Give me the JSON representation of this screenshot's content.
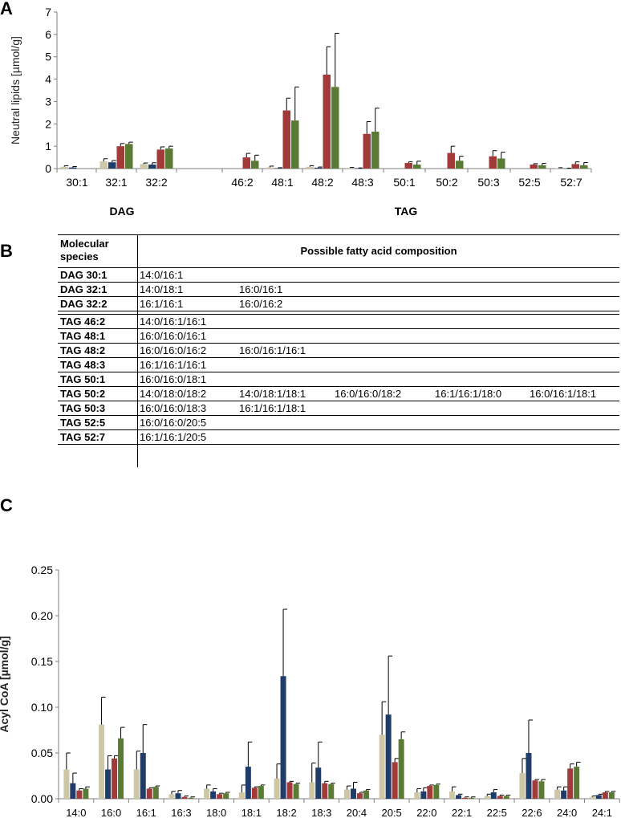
{
  "panels": {
    "a": "A",
    "b": "B",
    "c": "C"
  },
  "colors": {
    "series1": "#cdc7a6",
    "series2": "#1f3c6b",
    "series3": "#a33a3a",
    "series4": "#5b7a34"
  },
  "chart_data": [
    {
      "type": "bar",
      "ylabel": "Neutral lipids [µmol/g]",
      "ylim": [
        0,
        7
      ],
      "yticks": [
        0,
        1,
        2,
        3,
        4,
        5,
        6,
        7
      ],
      "categories": [
        "30:1",
        "32:1",
        "32:2",
        "46:2",
        "48:1",
        "48:2",
        "48:3",
        "50:1",
        "50:2",
        "50:3",
        "52:5",
        "52:7"
      ],
      "group_labels": [
        {
          "label": "DAG",
          "categories": [
            "30:1",
            "32:1",
            "32:2"
          ]
        },
        {
          "label": "TAG",
          "categories": [
            "46:2",
            "48:1",
            "48:2",
            "48:3",
            "50:1",
            "50:2",
            "50:3",
            "52:5",
            "52:7"
          ]
        }
      ],
      "series": [
        {
          "values": [
            0.08,
            0.32,
            0.2,
            0.0,
            0.05,
            0.08,
            0.03,
            0.0,
            0.0,
            0.0,
            0.0,
            0.02
          ],
          "errors": [
            0.05,
            0.12,
            0.05,
            0.0,
            0.06,
            0.05,
            0.02,
            0.0,
            0.0,
            0.0,
            0.0,
            0.02
          ]
        },
        {
          "values": [
            0.05,
            0.28,
            0.18,
            0.0,
            0.02,
            0.04,
            0.02,
            0.0,
            0.0,
            0.0,
            0.0,
            0.01
          ],
          "errors": [
            0.04,
            0.08,
            0.08,
            0.0,
            0.02,
            0.03,
            0.01,
            0.0,
            0.0,
            0.0,
            0.0,
            0.01
          ]
        },
        {
          "values": [
            0.0,
            1.0,
            0.85,
            0.5,
            2.6,
            4.2,
            1.55,
            0.25,
            0.7,
            0.55,
            0.18,
            0.2
          ],
          "errors": [
            0.0,
            0.12,
            0.12,
            0.18,
            0.55,
            1.25,
            0.55,
            0.05,
            0.3,
            0.25,
            0.04,
            0.1
          ]
        },
        {
          "values": [
            0.0,
            1.1,
            0.9,
            0.35,
            2.15,
            3.65,
            1.65,
            0.18,
            0.35,
            0.45,
            0.15,
            0.15
          ],
          "errors": [
            0.0,
            0.08,
            0.1,
            0.25,
            1.5,
            2.4,
            1.05,
            0.15,
            0.2,
            0.28,
            0.08,
            0.12
          ]
        }
      ]
    },
    {
      "type": "bar",
      "ylabel": "Acyl CoA [µmol/g]",
      "ylim": [
        0,
        0.25
      ],
      "yticks": [
        "0.00",
        "0.05",
        "0.10",
        "0.15",
        "0.20",
        "0.25"
      ],
      "categories": [
        "14:0",
        "16:0",
        "16:1",
        "16:3",
        "18:0",
        "18:1",
        "18:2",
        "18:3",
        "20:4",
        "20:5",
        "22:0",
        "22:1",
        "22:5",
        "22:6",
        "24:0",
        "24:1"
      ],
      "series": [
        {
          "values": [
            0.032,
            0.081,
            0.032,
            0.005,
            0.011,
            0.007,
            0.022,
            0.018,
            0.01,
            0.07,
            0.007,
            0.008,
            0.003,
            0.028,
            0.01,
            0.002
          ],
          "errors": [
            0.018,
            0.03,
            0.02,
            0.003,
            0.004,
            0.008,
            0.016,
            0.021,
            0.004,
            0.036,
            0.004,
            0.005,
            0.002,
            0.016,
            0.003,
            0.001
          ]
        },
        {
          "values": [
            0.017,
            0.032,
            0.05,
            0.006,
            0.008,
            0.035,
            0.134,
            0.034,
            0.011,
            0.092,
            0.008,
            0.004,
            0.007,
            0.05,
            0.009,
            0.004
          ],
          "errors": [
            0.011,
            0.015,
            0.031,
            0.003,
            0.003,
            0.027,
            0.073,
            0.028,
            0.007,
            0.064,
            0.004,
            0.001,
            0.003,
            0.036,
            0.004,
            0.001
          ]
        },
        {
          "values": [
            0.009,
            0.044,
            0.011,
            0.002,
            0.005,
            0.012,
            0.018,
            0.017,
            0.006,
            0.04,
            0.014,
            0.001,
            0.003,
            0.02,
            0.033,
            0.007
          ],
          "errors": [
            0.002,
            0.003,
            0.001,
            0.001,
            0.001,
            0.001,
            0.001,
            0.002,
            0.001,
            0.004,
            0.001,
            0.001,
            0.001,
            0.001,
            0.005,
            0.001
          ]
        },
        {
          "values": [
            0.011,
            0.066,
            0.013,
            0.001,
            0.006,
            0.014,
            0.016,
            0.016,
            0.009,
            0.065,
            0.015,
            0.001,
            0.003,
            0.019,
            0.035,
            0.007
          ],
          "errors": [
            0.002,
            0.012,
            0.001,
            0.001,
            0.001,
            0.001,
            0.001,
            0.001,
            0.001,
            0.008,
            0.001,
            0.001,
            0.001,
            0.002,
            0.005,
            0.001
          ]
        }
      ]
    }
  ],
  "table": {
    "header": {
      "species": "Molecular species",
      "composition": "Possible fatty acid composition"
    },
    "rows": [
      {
        "species": "DAG 30:1",
        "fa": [
          "14:0/16:1"
        ]
      },
      {
        "species": "DAG 32:1",
        "fa": [
          "14:0/18:1",
          "16:0/16:1"
        ]
      },
      {
        "species": "DAG 32:2",
        "fa": [
          "16:1/16:1",
          "16:0/16:2"
        ]
      },
      {
        "species": "TAG 46:2",
        "fa": [
          "14:0/16:1/16:1"
        ]
      },
      {
        "species": "TAG 48:1",
        "fa": [
          "16:0/16:0/16:1"
        ]
      },
      {
        "species": "TAG 48:2",
        "fa": [
          "16:0/16:0/16:2",
          "16:0/16:1/16:1"
        ]
      },
      {
        "species": "TAG 48:3",
        "fa": [
          "16:1/16:1/16:1"
        ]
      },
      {
        "species": "TAG 50:1",
        "fa": [
          "16:0/16:0/18:1"
        ]
      },
      {
        "species": "TAG 50:2",
        "fa": [
          "14:0/18:0/18:2",
          "14:0/18:1/18:1",
          "16:0/16:0/18:2",
          "16:1/16:1/18:0",
          "16:0/16:1/18:1"
        ]
      },
      {
        "species": "TAG 50:3",
        "fa": [
          "16:0/16:0/18:3",
          "16:1/16:1/18:1"
        ]
      },
      {
        "species": "TAG 52:5",
        "fa": [
          "16:0/16:0/20:5"
        ]
      },
      {
        "species": "TAG 52:7",
        "fa": [
          "16:1/16:1/20:5"
        ]
      }
    ]
  }
}
